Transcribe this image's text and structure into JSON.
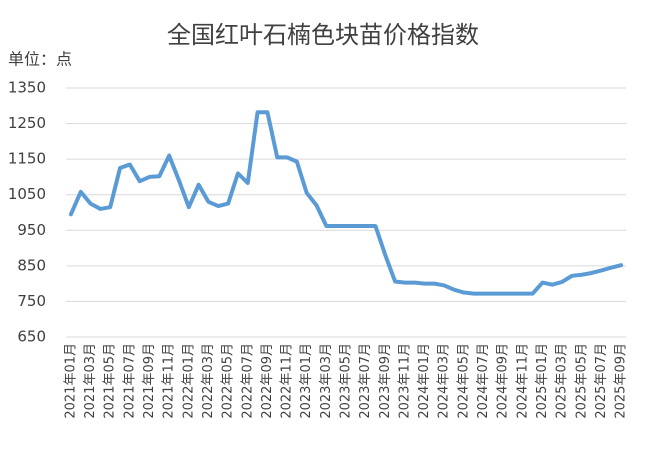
{
  "chart_data": {
    "type": "line",
    "title": "全国红叶石楠色块苗价格指数",
    "unit_label": "单位：点",
    "categories": [
      "2021年01月",
      null,
      "2021年03月",
      null,
      "2021年05月",
      null,
      "2021年07月",
      null,
      "2021年09月",
      null,
      "2021年11月",
      null,
      "2022年01月",
      null,
      "2022年03月",
      null,
      "2022年05月",
      null,
      "2022年07月",
      null,
      "2022年09月",
      null,
      "2022年11月",
      null,
      "2023年01月",
      null,
      "2023年03月",
      null,
      "2023年05月",
      null,
      "2023年07月",
      null,
      "2023年09月",
      null,
      "2023年11月",
      null,
      "2024年01月",
      null,
      "2024年03月",
      null,
      "2024年05月",
      null,
      "2024年07月",
      null,
      "2024年09月",
      null,
      "2024年11月",
      null,
      "2025年01月",
      null,
      "2025年03月",
      null,
      "2025年05月",
      null,
      "2025年07月",
      null,
      "2025年09月"
    ],
    "values": [
      995,
      1058,
      1025,
      1010,
      1015,
      1125,
      1135,
      1088,
      1100,
      1102,
      1160,
      1090,
      1015,
      1078,
      1030,
      1018,
      1025,
      1110,
      1083,
      1282,
      1282,
      1155,
      1155,
      1143,
      1055,
      1020,
      962,
      962,
      962,
      962,
      962,
      962,
      880,
      806,
      803,
      803,
      800,
      800,
      795,
      783,
      775,
      772,
      772,
      772,
      772,
      772,
      772,
      772,
      803,
      797,
      805,
      822,
      825,
      830,
      837,
      845,
      852
    ],
    "color": "#5b9bd5",
    "ylim": [
      650,
      1350
    ],
    "yticks": [
      650,
      750,
      850,
      950,
      1050,
      1150,
      1250,
      1350
    ],
    "grid": true
  }
}
